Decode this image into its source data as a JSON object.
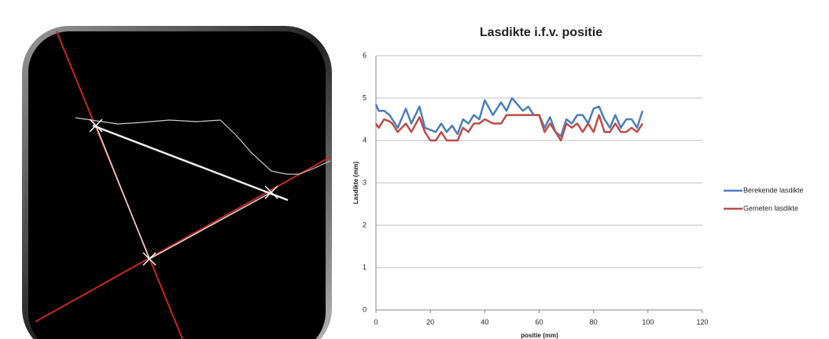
{
  "chart_data": {
    "type": "line",
    "title": "Lasdikte i.f.v. positie",
    "x_label": "positie (mm)",
    "y_label": "Lasdikte (mm)",
    "x": [
      0,
      1,
      3,
      5,
      6,
      8,
      11,
      13,
      16,
      18,
      20,
      22,
      24,
      26,
      28,
      30,
      32,
      34,
      36,
      38,
      40,
      43,
      46,
      48,
      50,
      52,
      54,
      56,
      58,
      60,
      62,
      64,
      66,
      68,
      70,
      72,
      74,
      76,
      78,
      80,
      82,
      84,
      86,
      88,
      90,
      92,
      94,
      96,
      98
    ],
    "series": [
      {
        "name": "Berekende lasdikte",
        "color": "#4a7ebb",
        "values": [
          4.85,
          4.7,
          4.7,
          4.6,
          4.5,
          4.3,
          4.75,
          4.4,
          4.8,
          4.3,
          4.25,
          4.2,
          4.4,
          4.2,
          4.35,
          4.15,
          4.5,
          4.4,
          4.6,
          4.5,
          4.95,
          4.6,
          4.9,
          4.7,
          5.0,
          4.85,
          4.7,
          4.8,
          4.6,
          4.6,
          4.3,
          4.55,
          4.2,
          4.1,
          4.5,
          4.4,
          4.6,
          4.6,
          4.4,
          4.75,
          4.8,
          4.5,
          4.3,
          4.6,
          4.3,
          4.5,
          4.5,
          4.3,
          4.7
        ]
      },
      {
        "name": "Gemeten lasdikte",
        "color": "#be4b48",
        "values": [
          4.4,
          4.3,
          4.5,
          4.45,
          4.4,
          4.2,
          4.4,
          4.2,
          4.55,
          4.2,
          4.0,
          4.0,
          4.2,
          4.0,
          4.0,
          4.0,
          4.3,
          4.2,
          4.4,
          4.4,
          4.5,
          4.4,
          4.4,
          4.6,
          4.6,
          4.6,
          4.6,
          4.6,
          4.6,
          4.6,
          4.2,
          4.4,
          4.2,
          4.0,
          4.4,
          4.3,
          4.4,
          4.2,
          4.4,
          4.2,
          4.6,
          4.2,
          4.2,
          4.4,
          4.2,
          4.2,
          4.3,
          4.2,
          4.4
        ]
      }
    ],
    "xlim": [
      0,
      120
    ],
    "xticks": [
      0,
      20,
      40,
      60,
      80,
      100,
      120
    ],
    "ylim": [
      0,
      6
    ],
    "yticks": [
      0,
      1,
      2,
      3,
      4,
      5,
      6
    ],
    "grid": true,
    "legend": "right"
  }
}
